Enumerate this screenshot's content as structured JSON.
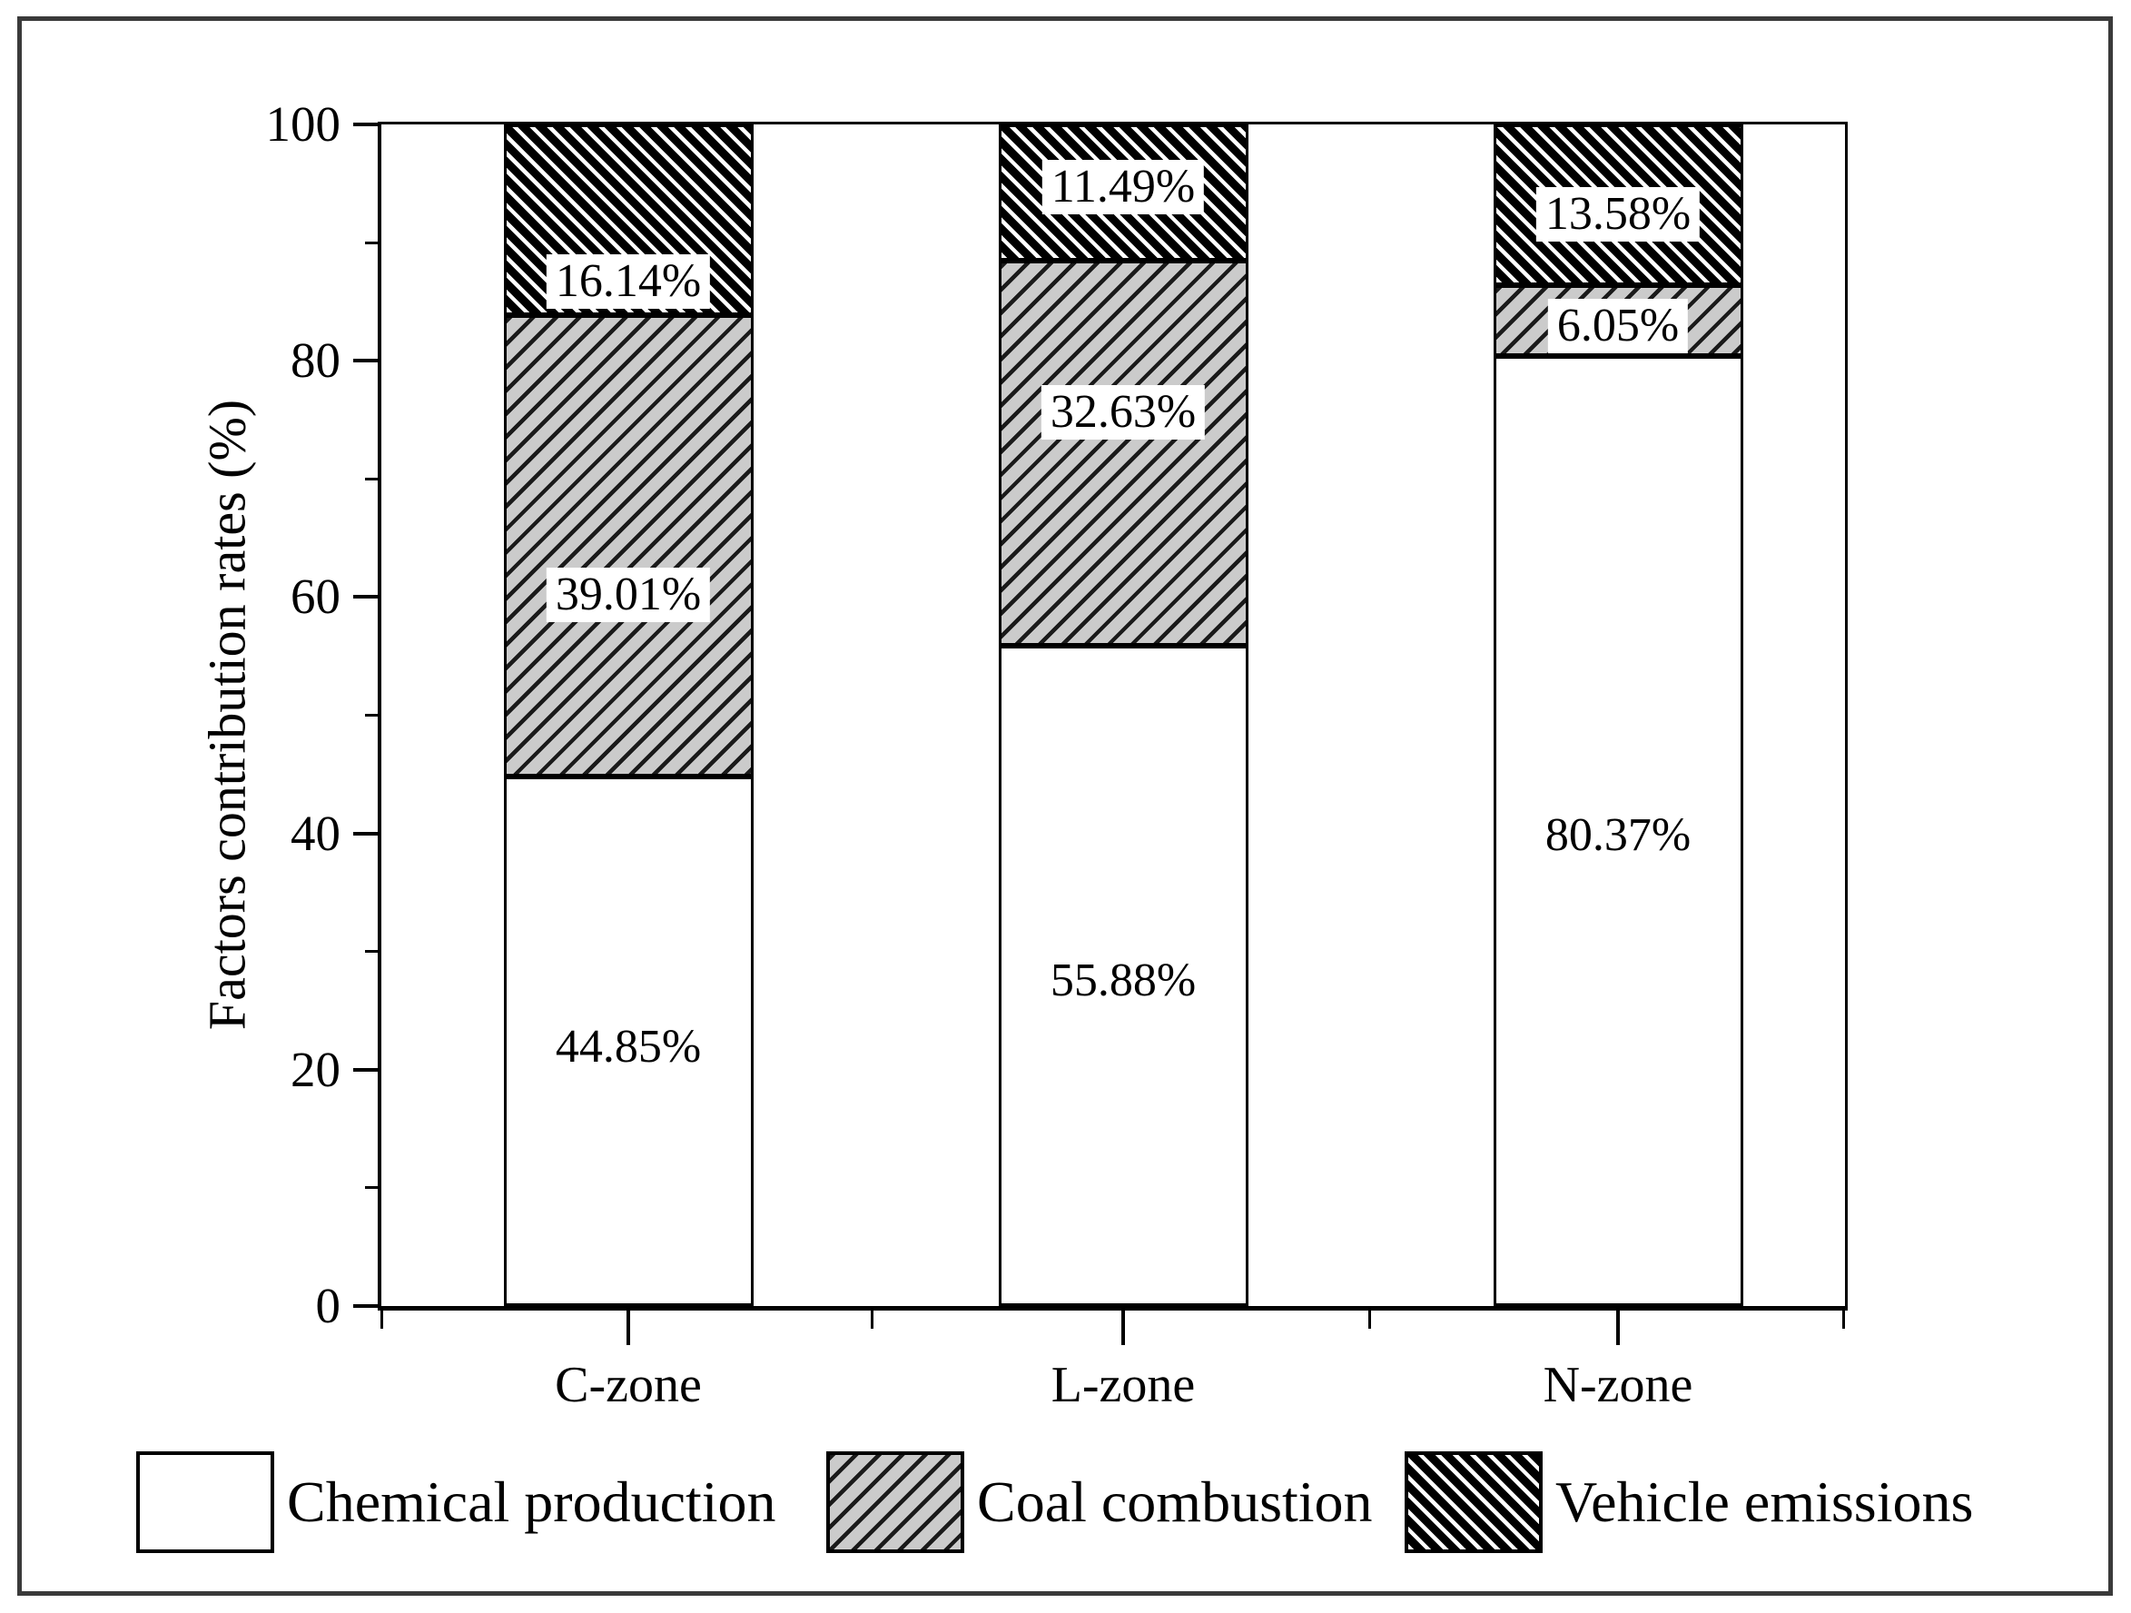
{
  "chart_data": {
    "type": "bar",
    "stacked": true,
    "title": "",
    "xlabel": "",
    "ylabel": "Factors contribution rates (%)",
    "ylim": [
      0,
      100
    ],
    "yticks_major": [
      0,
      20,
      40,
      60,
      80,
      100
    ],
    "yticks_minor": [
      10,
      30,
      50,
      70,
      90
    ],
    "grid": false,
    "legend_position": "bottom",
    "categories": [
      "C-zone",
      "L-zone",
      "N-zone"
    ],
    "series": [
      {
        "name": "Chemical production",
        "swatch": "white-plain",
        "values": [
          44.85,
          55.88,
          80.37
        ]
      },
      {
        "name": "Coal combustion",
        "swatch": "gray-forward-hatch",
        "values": [
          39.01,
          32.63,
          6.05
        ]
      },
      {
        "name": "Vehicle emissions",
        "swatch": "black-back-hatch",
        "values": [
          16.14,
          11.49,
          13.58
        ]
      }
    ],
    "bar_labels": [
      {
        "category": "C-zone",
        "labels": [
          {
            "text": "44.85%",
            "y_pct": 21.9
          },
          {
            "text": "39.01%",
            "y_pct": 60.2
          },
          {
            "text": "16.14%",
            "y_pct": 86.7
          }
        ]
      },
      {
        "category": "L-zone",
        "labels": [
          {
            "text": "55.88%",
            "y_pct": 27.5
          },
          {
            "text": "32.63%",
            "y_pct": 75.6
          },
          {
            "text": "11.49%",
            "y_pct": 94.7
          }
        ]
      },
      {
        "category": "N-zone",
        "labels": [
          {
            "text": "80.37%",
            "y_pct": 39.8
          },
          {
            "text": "6.05%",
            "y_pct": 82.9
          },
          {
            "text": "13.58%",
            "y_pct": 92.4
          }
        ]
      }
    ],
    "colors": {
      "bar_white": "#ffffff",
      "bar_gray": "#cbcbcb",
      "bar_black": "#000000",
      "hatch_dark_line": "#1a1a1a",
      "hatch_light_line": "#ffffff",
      "axis": "#000000",
      "frame": "#3a3a3a"
    }
  },
  "legend": {
    "items": [
      {
        "label": "Chemical production",
        "swatch": "white-plain"
      },
      {
        "label": "Coal combustion",
        "swatch": "gray-forward-hatch"
      },
      {
        "label": "Vehicle emissions",
        "swatch": "black-back-hatch"
      }
    ]
  }
}
